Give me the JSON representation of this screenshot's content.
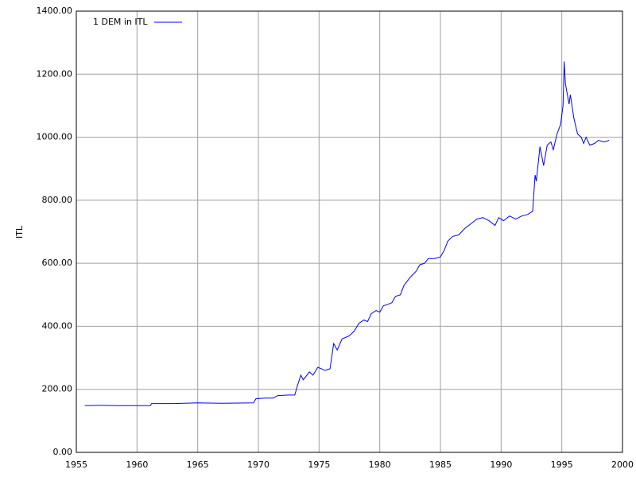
{
  "chart_data": {
    "type": "line",
    "ylabel": "ITL",
    "legend": "top-left",
    "grid": true,
    "x": [
      1955.7,
      1957,
      1958.5,
      1960,
      1961.1,
      1961.2,
      1963,
      1965,
      1967,
      1969.6,
      1969.8,
      1970.5,
      1971.2,
      1971.6,
      1972.5,
      1973.0,
      1973.2,
      1973.5,
      1973.7,
      1974.2,
      1974.5,
      1974.9,
      1975.5,
      1975.9,
      1976.2,
      1976.5,
      1976.9,
      1977.5,
      1977.9,
      1978.3,
      1978.7,
      1979.0,
      1979.3,
      1979.7,
      1980.0,
      1980.3,
      1980.7,
      1981.0,
      1981.3,
      1981.7,
      1982.0,
      1982.5,
      1983.0,
      1983.3,
      1983.7,
      1984.0,
      1984.5,
      1985.0,
      1985.3,
      1985.6,
      1986.0,
      1986.5,
      1987.0,
      1987.5,
      1988.0,
      1988.5,
      1989.0,
      1989.5,
      1989.8,
      1990.2,
      1990.7,
      1991.2,
      1991.7,
      1992.2,
      1992.6,
      1992.8,
      1992.9,
      1993.2,
      1993.5,
      1993.8,
      1994.1,
      1994.3,
      1994.6,
      1994.9,
      1995.1,
      1995.2,
      1995.3,
      1995.6,
      1995.7,
      1996.0,
      1996.3,
      1996.6,
      1996.8,
      1997.0,
      1997.3,
      1997.7,
      1998.0,
      1998.5,
      1998.9
    ],
    "series": [
      {
        "name": "1 DEM in ITL",
        "color": "#0000ff",
        "values": [
          148,
          149,
          148,
          148,
          148,
          155,
          155,
          157,
          156,
          157,
          170,
          172,
          172,
          180,
          182,
          182,
          210,
          245,
          230,
          255,
          245,
          270,
          260,
          265,
          345,
          325,
          360,
          370,
          385,
          410,
          420,
          415,
          440,
          450,
          445,
          465,
          470,
          475,
          495,
          500,
          530,
          555,
          575,
          595,
          600,
          615,
          615,
          620,
          640,
          670,
          685,
          690,
          710,
          725,
          740,
          745,
          735,
          720,
          745,
          735,
          750,
          740,
          750,
          755,
          765,
          880,
          860,
          970,
          910,
          975,
          985,
          960,
          1010,
          1040,
          1100,
          1240,
          1170,
          1105,
          1135,
          1060,
          1010,
          1000,
          980,
          1000,
          975,
          980,
          990,
          985,
          990
        ]
      }
    ],
    "xlim": [
      1955,
      2000
    ],
    "xticks": [
      1955,
      1960,
      1965,
      1970,
      1975,
      1980,
      1985,
      1990,
      1995,
      2000
    ],
    "ylim": [
      0,
      1400
    ],
    "yticks": [
      {
        "value": 0,
        "label": "0.00"
      },
      {
        "value": 200,
        "label": "200.00"
      },
      {
        "value": 400,
        "label": "400.00"
      },
      {
        "value": 600,
        "label": "600.00"
      },
      {
        "value": 800,
        "label": "800.00"
      },
      {
        "value": 1000,
        "label": "1000.00"
      },
      {
        "value": 1200,
        "label": "1200.00"
      },
      {
        "value": 1400,
        "label": "1400.00"
      }
    ]
  }
}
